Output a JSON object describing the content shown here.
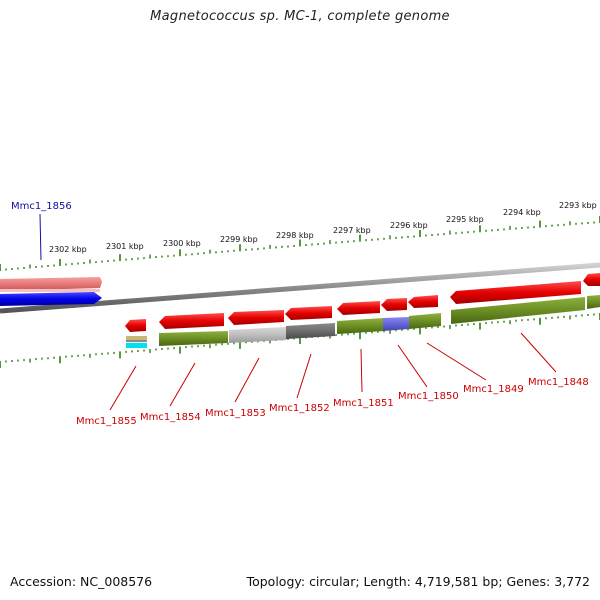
{
  "title": "Magnetococcus sp. MC-1, complete genome",
  "footer": {
    "accession_label": "Accession:",
    "accession": "NC_008576",
    "topology_label": "Topology:",
    "topology": "circular",
    "length_label": "Length:",
    "length": "4,719,581 bp",
    "genes_label": "Genes:",
    "genes": "3,772"
  },
  "ticks": [
    "2302 kbp",
    "2301 kbp",
    "2300 kbp",
    "2299 kbp",
    "2298 kbp",
    "2297 kbp",
    "2296 kbp",
    "2295 kbp",
    "2294 kbp",
    "2293 kbp"
  ],
  "gene_labels": [
    {
      "name": "Mmc1_1856",
      "color": "#1010a0"
    },
    {
      "name": "Mmc1_1855",
      "color": "#cc0000"
    },
    {
      "name": "Mmc1_1854",
      "color": "#cc0000"
    },
    {
      "name": "Mmc1_1853",
      "color": "#cc0000"
    },
    {
      "name": "Mmc1_1852",
      "color": "#cc0000"
    },
    {
      "name": "Mmc1_1851",
      "color": "#cc0000"
    },
    {
      "name": "Mmc1_1850",
      "color": "#cc0000"
    },
    {
      "name": "Mmc1_1849",
      "color": "#cc0000"
    },
    {
      "name": "Mmc1_1848",
      "color": "#cc0000"
    }
  ],
  "colors": {
    "forward_cds": "#e60000",
    "reverse_cds": "#0000e6",
    "pink_cds": "#e87878",
    "olive_feature": "#6b8e23",
    "gray_feature": "#bdbdbd",
    "dark_gray_feature": "#6e6e6e",
    "purple_feature": "#6666dd",
    "cyan_feature": "#00e0f0",
    "tick_green": "#2e7d12",
    "backbone": "#8a8a8a"
  }
}
